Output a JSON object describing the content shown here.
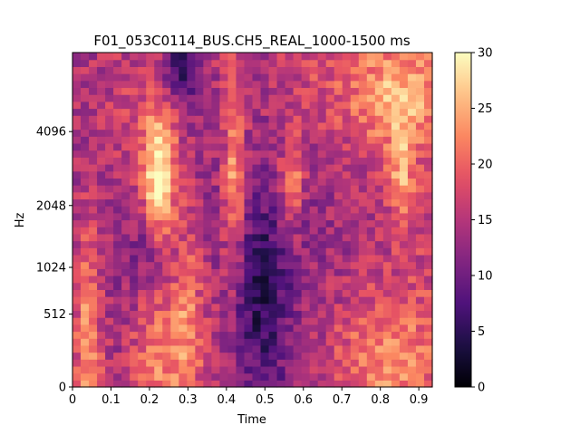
{
  "chart_data": {
    "type": "heatmap",
    "title": "F01_053C0114_BUS.CH5_REAL_1000-1500 ms",
    "xlabel": "Time",
    "ylabel": "Hz",
    "xlim": [
      0,
      0.935
    ],
    "x_ticks": [
      {
        "value": 0,
        "label": "0"
      },
      {
        "value": 0.1,
        "label": "0.1"
      },
      {
        "value": 0.2,
        "label": "0.2"
      },
      {
        "value": 0.3,
        "label": "0.3"
      },
      {
        "value": 0.4,
        "label": "0.4"
      },
      {
        "value": 0.5,
        "label": "0.5"
      },
      {
        "value": 0.6,
        "label": "0.6"
      },
      {
        "value": 0.7,
        "label": "0.7"
      },
      {
        "value": 0.8,
        "label": "0.8"
      },
      {
        "value": 0.9,
        "label": "0.9"
      }
    ],
    "y_scale": "mel",
    "y_ticks": [
      {
        "value": 0,
        "label": "0"
      },
      {
        "value": 512,
        "label": "512"
      },
      {
        "value": 1024,
        "label": "1024"
      },
      {
        "value": 2048,
        "label": "2048"
      },
      {
        "value": 4096,
        "label": "4096"
      }
    ],
    "y_max_hz": 8000,
    "colormap": "magma",
    "colorbar": {
      "range": [
        0,
        30
      ],
      "ticks": [
        {
          "value": 0,
          "label": "0"
        },
        {
          "value": 5,
          "label": "5"
        },
        {
          "value": 10,
          "label": "10"
        },
        {
          "value": 15,
          "label": "15"
        },
        {
          "value": 20,
          "label": "20"
        },
        {
          "value": 25,
          "label": "25"
        },
        {
          "value": 30,
          "label": "30"
        }
      ]
    },
    "grid": false,
    "n_frames": 44,
    "n_bins": 48,
    "blobs": [
      {
        "t": 0.225,
        "f": 2700,
        "amp": 16,
        "st": 0.03,
        "sf": 0.14
      },
      {
        "t": 0.42,
        "f": 2900,
        "amp": 10,
        "st": 0.018,
        "sf": 0.2
      },
      {
        "t": 0.57,
        "f": 2600,
        "amp": 10,
        "st": 0.02,
        "sf": 0.1
      },
      {
        "t": 0.855,
        "f": 2700,
        "amp": 9,
        "st": 0.02,
        "sf": 0.1
      },
      {
        "t": 0.85,
        "f": 5500,
        "amp": 8,
        "st": 0.08,
        "sf": 0.12
      },
      {
        "t": 0.04,
        "f": 250,
        "amp": 10,
        "st": 0.025,
        "sf": 0.25
      },
      {
        "t": 0.3,
        "f": 450,
        "amp": 8,
        "st": 0.03,
        "sf": 0.25
      },
      {
        "t": 0.22,
        "f": 150,
        "amp": 8,
        "st": 0.05,
        "sf": 0.2
      },
      {
        "t": 0.8,
        "f": 150,
        "amp": 8,
        "st": 0.1,
        "sf": 0.15
      },
      {
        "t": 0.42,
        "f": 900,
        "amp": 4,
        "st": 0.05,
        "sf": 0.3
      },
      {
        "t": 0.18,
        "f": 4600,
        "amp": 3,
        "st": 0.08,
        "sf": 0.15
      },
      {
        "t": 0.7,
        "f": 6000,
        "amp": 4,
        "st": 0.12,
        "sf": 0.15
      },
      {
        "t": 0.28,
        "f": 7000,
        "amp": -10,
        "st": 0.03,
        "sf": 0.08
      },
      {
        "t": 0.2,
        "f": 1200,
        "amp": -5,
        "st": 0.05,
        "sf": 0.1
      },
      {
        "t": 0.47,
        "f": 700,
        "amp": -6,
        "st": 0.04,
        "sf": 0.15
      },
      {
        "t": 0.5,
        "f": 400,
        "amp": -4,
        "st": 0.06,
        "sf": 0.3
      },
      {
        "t": 0.45,
        "f": 1500,
        "amp": -3,
        "st": 0.1,
        "sf": 0.2
      }
    ]
  }
}
